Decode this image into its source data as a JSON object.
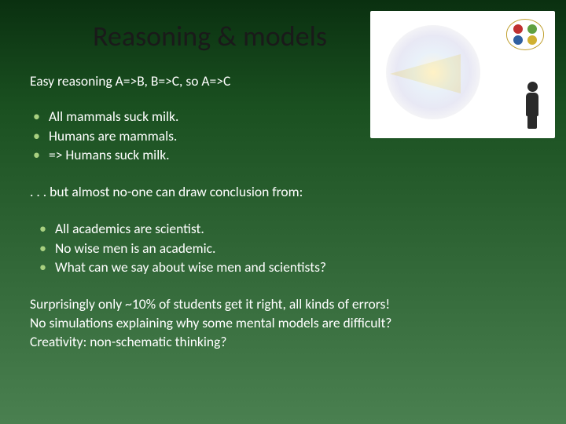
{
  "title": "Reasoning & models",
  "subtitle": "Easy reasoning A=>B, B=>C, so A=>C",
  "bullets1": [
    "All mammals suck milk.",
    "Humans are mammals.",
    "=> Humans suck milk."
  ],
  "transition": ". . . but almost no-one can draw conclusion from:",
  "bullets2": [
    "All academics are scientist.",
    "No wise men is an academic.",
    "What can we say about wise men and scientists?"
  ],
  "closing": [
    "Surprisingly only ~10% of students get it right, all kinds of errors!",
    "No simulations explaining why some mental models are difficult?",
    "Creativity: non-schematic thinking?"
  ],
  "style": {
    "title_fontsize": 36,
    "title_color": "#1a1a1a",
    "body_fontsize": 17.5,
    "body_color": "#ffffff",
    "bullet_color": "#a8d080",
    "bg_gradient": [
      "#0a3010",
      "#1a5020",
      "#2a6030",
      "#3a7040",
      "#4a8050"
    ],
    "font_family": "Calibri"
  },
  "illustration": {
    "bg": "#ffffff",
    "bubble_border": "#c0a030",
    "dot_colors": {
      "red": "#c03030",
      "green": "#60a040",
      "blue": "#3060a0",
      "yellow": "#d0b030"
    },
    "person_color": "#2a2a2a",
    "beam_color": "rgba(255,230,120,0.45)"
  }
}
